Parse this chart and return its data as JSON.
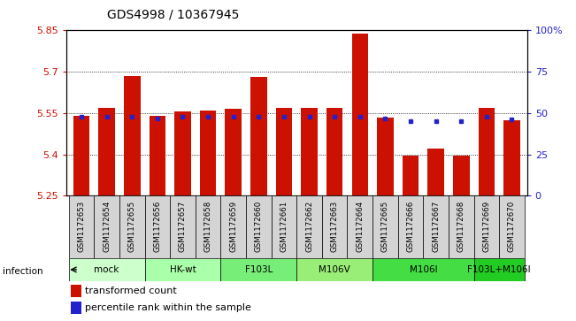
{
  "title": "GDS4998 / 10367945",
  "samples": [
    "GSM1172653",
    "GSM1172654",
    "GSM1172655",
    "GSM1172656",
    "GSM1172657",
    "GSM1172658",
    "GSM1172659",
    "GSM1172660",
    "GSM1172661",
    "GSM1172662",
    "GSM1172663",
    "GSM1172664",
    "GSM1172665",
    "GSM1172666",
    "GSM1172667",
    "GSM1172668",
    "GSM1172669",
    "GSM1172670"
  ],
  "transformed_count": [
    5.54,
    5.57,
    5.685,
    5.54,
    5.555,
    5.56,
    5.565,
    5.68,
    5.57,
    5.57,
    5.568,
    5.84,
    5.535,
    5.395,
    5.42,
    5.395,
    5.57,
    5.525
  ],
  "percentile_rank": [
    48,
    48,
    48,
    47,
    48,
    48,
    48,
    48,
    48,
    48,
    48,
    48,
    47,
    45,
    45,
    45,
    48,
    46
  ],
  "ylim_left": [
    5.25,
    5.85
  ],
  "ylim_right": [
    0,
    100
  ],
  "yticks_left": [
    5.25,
    5.4,
    5.55,
    5.7,
    5.85
  ],
  "ytick_labels_left": [
    "5.25",
    "5.4",
    "5.55",
    "5.7",
    "5.85"
  ],
  "yticks_right": [
    0,
    25,
    50,
    75,
    100
  ],
  "ytick_labels_right": [
    "0",
    "25",
    "50",
    "75",
    "100%"
  ],
  "bar_color": "#cc1100",
  "dot_color": "#2222cc",
  "baseline": 5.25,
  "groups": [
    {
      "label": "mock",
      "start": 0,
      "end": 2,
      "color": "#ccffcc"
    },
    {
      "label": "HK-wt",
      "start": 3,
      "end": 5,
      "color": "#aaffaa"
    },
    {
      "label": "F103L",
      "start": 6,
      "end": 8,
      "color": "#77ee77"
    },
    {
      "label": "M106V",
      "start": 9,
      "end": 11,
      "color": "#99ee77"
    },
    {
      "label": "M106I",
      "start": 12,
      "end": 15,
      "color": "#44dd44"
    },
    {
      "label": "F103L+M106I",
      "start": 16,
      "end": 17,
      "color": "#22cc22"
    }
  ],
  "sample_box_color": "#d4d4d4",
  "legend_bar_color": "#cc1100",
  "legend_dot_color": "#2222cc",
  "infection_label": "infection",
  "background_color": "#ffffff"
}
